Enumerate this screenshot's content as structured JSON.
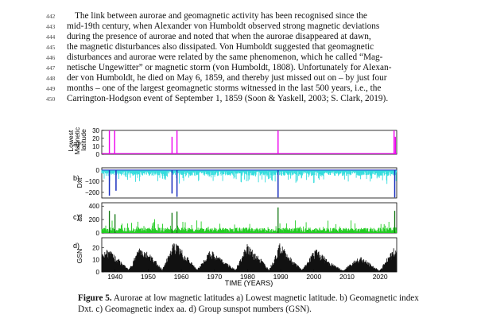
{
  "text": {
    "line_numbers": [
      "442",
      "443",
      "444",
      "445",
      "446",
      "447",
      "448",
      "449",
      "450"
    ],
    "lines": [
      "The link between aurorae and geomagnetic activity has been recognised since the",
      "mid-19th century, when Alexander von Humboldt observed strong magnetic deviations",
      "during the presence of aurorae and noted that when the aurorae disappeared at dawn,",
      "the magnetic disturbances also dissipated. Von Humboldt suggested that geomagnetic",
      "disturbances and aurorae were related by the same phenomenon, which he called “Mag-",
      "netische Ungewitter” or magnetic storm (von Humboldt, 1808). Unfortunately for Alexan-",
      "der von Humboldt, he died on May 6, 1859, and thereby just missed out on – by just four",
      "months – one of the largest geomagnetic storms witnessed in the last 500 years, i.e., the",
      "Carrington-Hodgson event of September 1, 1859 (Soon & Yaskell, 2003; S. Clark, 2019)."
    ]
  },
  "figure": {
    "caption_label": "Figure 5.",
    "caption_text": "Aurorae at low magnetic latitudes a) Lowest magnetic latitude. b) Geomagnetic index Dxt. c) Geomagnetic index aa. d) Group sunspot numbers (GSN).",
    "xlabel": "TIME (YEARS)",
    "xticks": [
      "1940",
      "1950",
      "1960",
      "1970",
      "1980",
      "1990",
      "2000",
      "2010",
      "2020"
    ],
    "colors": {
      "a": "#ee00ee",
      "b_fill": "#33dddd",
      "b_spike": "#1a2fbf",
      "c": "#22cc22",
      "c_spike": "#117711",
      "d": "#111111"
    }
  },
  "chart_data": [
    {
      "type": "bar",
      "panel_label": "a)",
      "ylabel": "Lowest Magnetic latitude",
      "yticks": [
        "0",
        "10",
        "20",
        "30"
      ],
      "ylim": [
        0,
        30
      ],
      "xlim": [
        1936,
        2025
      ],
      "x": [
        1938.3,
        1939.9,
        1957.2,
        1958.7,
        1989.2,
        2024.2,
        2024.6
      ],
      "values": [
        30,
        30,
        22,
        30,
        30,
        30,
        22
      ]
    },
    {
      "type": "area",
      "panel_label": "b)",
      "ylabel": "Dxt",
      "yticks": [
        "0",
        "−100",
        "−200"
      ],
      "ylim": [
        -250,
        20
      ],
      "xlim": [
        1936,
        2025
      ],
      "series": [
        {
          "role": "storm-spikes",
          "x": [
            1938.3,
            1940.3,
            1957.2,
            1958.7,
            1989.2,
            2024.4
          ],
          "values": [
            -230,
            -185,
            -210,
            -240,
            -245,
            -245
          ]
        }
      ]
    },
    {
      "type": "area",
      "panel_label": "c)",
      "ylabel": "aa",
      "yticks": [
        "0",
        "200",
        "400"
      ],
      "ylim": [
        0,
        450
      ],
      "xlim": [
        1936,
        2025
      ],
      "series": [
        {
          "role": "storm-spikes",
          "x": [
            1938.3,
            1940.0,
            1957.2,
            1958.7,
            1989.2,
            2024.4
          ],
          "values": [
            330,
            280,
            300,
            320,
            380,
            330
          ]
        }
      ]
    },
    {
      "type": "area",
      "panel_label": "d)",
      "ylabel": "GSN",
      "yticks": [
        "0",
        "10",
        "20"
      ],
      "ylim": [
        0,
        28
      ],
      "xlim": [
        1936,
        2025
      ],
      "series": [
        {
          "role": "cycle-envelope",
          "x": [
            1936,
            1937.5,
            1941,
            1944.2,
            1947.5,
            1951,
            1954.3,
            1957.9,
            1962,
            1964.8,
            1968.8,
            1972.5,
            1976.3,
            1979.9,
            1983.5,
            1986.5,
            1989.8,
            1993.5,
            1996.5,
            2000.5,
            2004.5,
            2008.9,
            2012,
            2014.3,
            2016.5,
            2019.9,
            2022.5,
            2024.3
          ],
          "values": [
            14,
            20,
            11,
            2,
            22,
            14,
            2,
            26,
            12,
            2,
            18,
            10,
            2,
            23,
            13,
            2,
            24,
            10,
            2,
            20,
            9,
            1,
            10,
            13,
            8,
            1,
            14,
            20
          ]
        }
      ]
    }
  ]
}
